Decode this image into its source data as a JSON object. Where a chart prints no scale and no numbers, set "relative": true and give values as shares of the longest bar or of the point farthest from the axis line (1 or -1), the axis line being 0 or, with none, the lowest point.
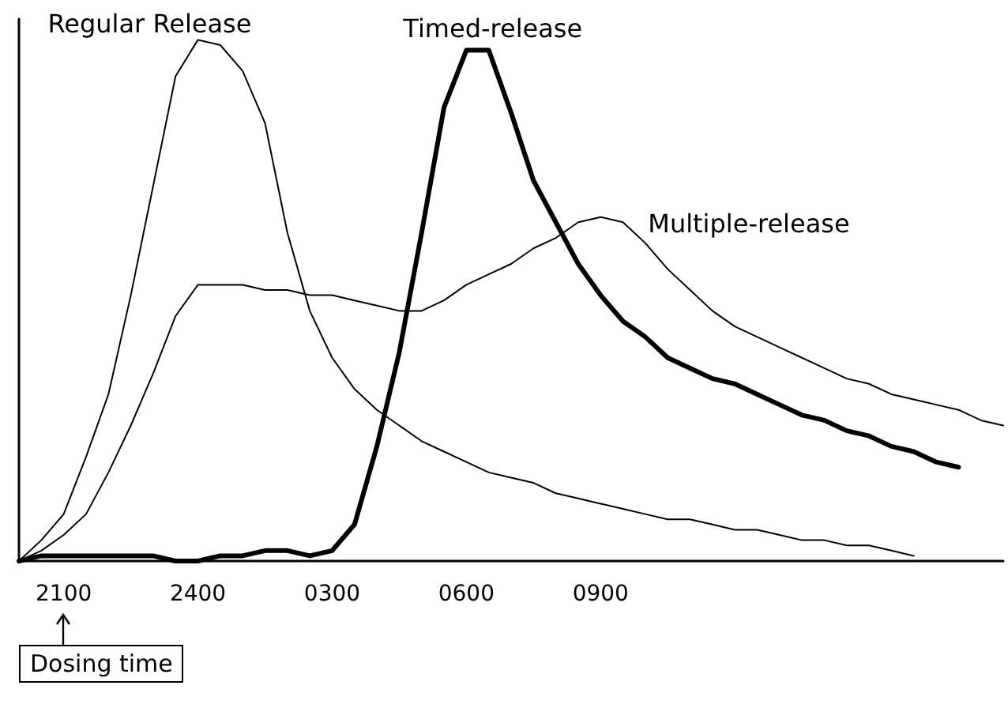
{
  "chart_data": {
    "type": "line",
    "relative": true,
    "marker": "none",
    "line_style": "solid",
    "grid": false,
    "legend": false,
    "categories": [
      null,
      null,
      "2100",
      null,
      null,
      null,
      null,
      null,
      "2400",
      null,
      null,
      null,
      null,
      null,
      "0300",
      null,
      null,
      null,
      null,
      null,
      "0600",
      null,
      null,
      null,
      null,
      null,
      "0900",
      null,
      null,
      null,
      null,
      null,
      null,
      null,
      null,
      null,
      null,
      null,
      null,
      null,
      null,
      null,
      null,
      null,
      null
    ],
    "annotations": [
      "Dosing time"
    ],
    "series": [
      {
        "name": "Regular Release",
        "color": "#000000",
        "values": [
          0,
          0.04,
          0.09,
          0.2,
          0.32,
          0.51,
          0.72,
          0.93,
          1,
          0.99,
          0.94,
          0.84,
          0.63,
          0.48,
          0.39,
          0.33,
          0.29,
          0.26,
          0.23,
          0.21,
          0.19,
          0.17,
          0.16,
          0.15,
          0.13,
          0.12,
          0.11,
          0.1,
          0.09,
          0.08,
          0.08,
          0.07,
          0.06,
          0.06,
          0.05,
          0.04,
          0.04,
          0.03,
          0.03,
          0.02,
          0.01,
          null,
          null,
          null,
          null
        ]
      },
      {
        "name": "Timed-release",
        "color": "#000000",
        "values": [
          0,
          0.01,
          0.01,
          0.01,
          0.01,
          0.01,
          0.01,
          0,
          0,
          0.01,
          0.01,
          0.02,
          0.02,
          0.01,
          0.02,
          0.07,
          0.22,
          0.4,
          0.63,
          0.87,
          0.98,
          0.98,
          0.86,
          0.73,
          0.65,
          0.57,
          0.51,
          0.46,
          0.43,
          0.39,
          0.37,
          0.35,
          0.34,
          0.32,
          0.3,
          0.28,
          0.27,
          0.25,
          0.24,
          0.22,
          0.21,
          0.19,
          0.18,
          null,
          null
        ]
      },
      {
        "name": "Multiple-release",
        "color": "#000000",
        "values": [
          0,
          0.02,
          0.05,
          0.09,
          0.17,
          0.26,
          0.36,
          0.47,
          0.53,
          0.53,
          0.53,
          0.52,
          0.52,
          0.51,
          0.51,
          0.5,
          0.49,
          0.48,
          0.48,
          0.5,
          0.53,
          0.55,
          0.57,
          0.6,
          0.62,
          0.65,
          0.66,
          0.65,
          0.61,
          0.56,
          0.52,
          0.48,
          0.45,
          0.43,
          0.41,
          0.39,
          0.37,
          0.35,
          0.34,
          0.32,
          0.31,
          0.3,
          0.29,
          0.27,
          0.26
        ]
      }
    ]
  }
}
